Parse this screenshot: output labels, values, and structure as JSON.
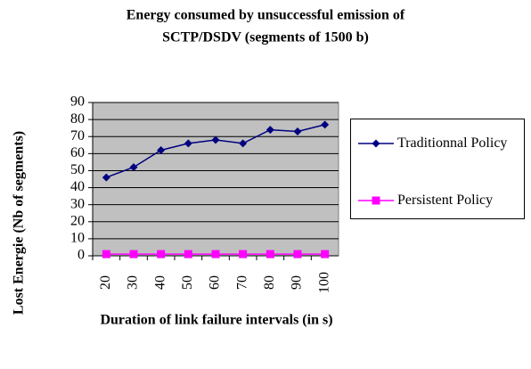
{
  "chart_data": {
    "type": "line",
    "title": [
      "Energy consumed by unsuccessful emission of",
      "SCTP/DSDV (segments of 1500 b)"
    ],
    "x_label": "Duration of link failure intervals (in s)",
    "y_label": "Lost Energie (Nb of segments)",
    "categories": [
      "20",
      "30",
      "40",
      "50",
      "60",
      "70",
      "80",
      "90",
      "100"
    ],
    "series": [
      {
        "name": "Traditionnal Policy",
        "color": "#000080",
        "marker": "diamond",
        "values": [
          46,
          52,
          62,
          66,
          68,
          66,
          74,
          73,
          77
        ]
      },
      {
        "name": "Persistent Policy",
        "color": "#ff00ff",
        "marker": "square",
        "values": [
          1,
          1,
          1,
          1,
          1,
          1,
          1,
          1,
          1
        ]
      }
    ],
    "ylim": [
      0,
      90
    ],
    "yticks": [
      0,
      10,
      20,
      30,
      40,
      50,
      60,
      70,
      80,
      90
    ],
    "grid": true,
    "plot_background": "#c0c0c0",
    "legend": "right"
  }
}
